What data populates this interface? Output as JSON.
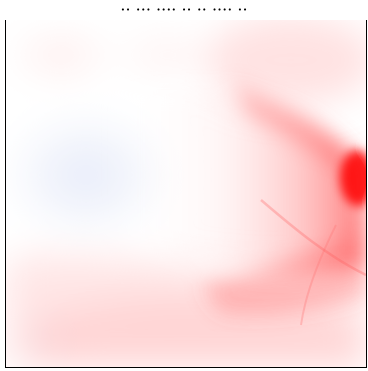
{
  "figure": {
    "caption_fragment": "·· ··· ···· ·· ·· ···· ··"
  },
  "colors": {
    "background": "#ffffff",
    "frame": "#000000",
    "hot": "#ff0000",
    "cold": "#e8ecf8"
  }
}
